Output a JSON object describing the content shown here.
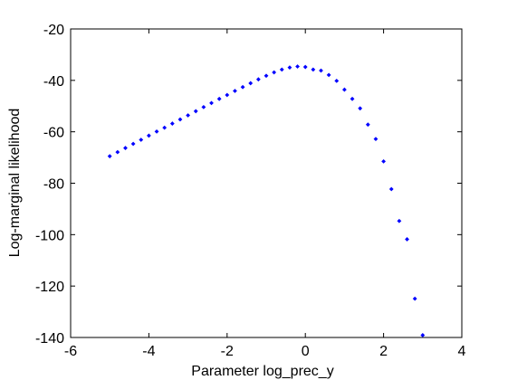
{
  "chart_data": {
    "type": "scatter",
    "xlabel": "Parameter log_prec_y",
    "ylabel": "Log-marginal likelihood",
    "xlim": [
      -6,
      4
    ],
    "ylim": [
      -140,
      -20
    ],
    "xticks": [
      -6,
      -4,
      -2,
      0,
      2,
      4
    ],
    "yticks": [
      -140,
      -120,
      -100,
      -80,
      -60,
      -40,
      -20
    ],
    "xtick_labels": [
      "-6",
      "-4",
      "-2",
      "0",
      "2",
      "4"
    ],
    "ytick_labels": [
      "-140",
      "-120",
      "-100",
      "-80",
      "-60",
      "-40",
      "-20"
    ],
    "grid": false,
    "marker_color": "#0000ff",
    "points": [
      {
        "x": -5.0,
        "y": -69.5
      },
      {
        "x": -4.8,
        "y": -67.9
      },
      {
        "x": -4.6,
        "y": -66.3
      },
      {
        "x": -4.4,
        "y": -64.7
      },
      {
        "x": -4.2,
        "y": -63.1
      },
      {
        "x": -4.0,
        "y": -61.5
      },
      {
        "x": -3.8,
        "y": -59.9
      },
      {
        "x": -3.6,
        "y": -58.4
      },
      {
        "x": -3.4,
        "y": -56.8
      },
      {
        "x": -3.2,
        "y": -55.2
      },
      {
        "x": -3.0,
        "y": -53.6
      },
      {
        "x": -2.8,
        "y": -52.0
      },
      {
        "x": -2.6,
        "y": -50.4
      },
      {
        "x": -2.4,
        "y": -48.8
      },
      {
        "x": -2.2,
        "y": -47.2
      },
      {
        "x": -2.0,
        "y": -45.7
      },
      {
        "x": -1.8,
        "y": -44.1
      },
      {
        "x": -1.6,
        "y": -42.6
      },
      {
        "x": -1.4,
        "y": -41.1
      },
      {
        "x": -1.2,
        "y": -39.6
      },
      {
        "x": -1.0,
        "y": -38.2
      },
      {
        "x": -0.8,
        "y": -36.9
      },
      {
        "x": -0.6,
        "y": -35.8
      },
      {
        "x": -0.4,
        "y": -35.0
      },
      {
        "x": -0.2,
        "y": -34.6
      },
      {
        "x": 0.0,
        "y": -34.8
      },
      {
        "x": 0.2,
        "y": -35.8
      },
      {
        "x": 0.4,
        "y": -36.2
      },
      {
        "x": 0.6,
        "y": -37.9
      },
      {
        "x": 0.8,
        "y": -40.2
      },
      {
        "x": 1.0,
        "y": -43.6
      },
      {
        "x": 1.2,
        "y": -47.2
      },
      {
        "x": 1.4,
        "y": -50.9
      },
      {
        "x": 1.6,
        "y": -57.2
      },
      {
        "x": 1.8,
        "y": -62.8
      },
      {
        "x": 2.0,
        "y": -71.5
      },
      {
        "x": 2.2,
        "y": -82.3
      },
      {
        "x": 2.4,
        "y": -94.7
      },
      {
        "x": 2.6,
        "y": -101.8
      },
      {
        "x": 2.8,
        "y": -124.9
      },
      {
        "x": 3.0,
        "y": -139.1
      }
    ]
  }
}
